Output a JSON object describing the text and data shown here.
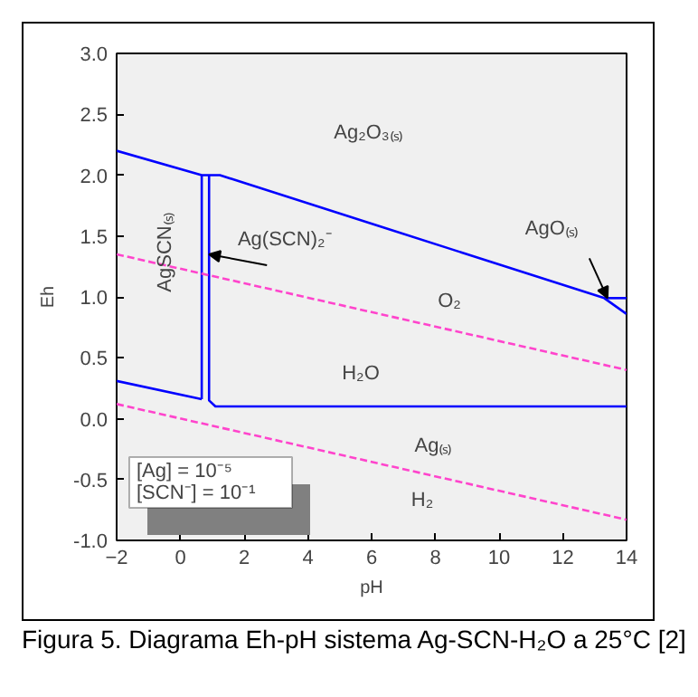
{
  "chart_data": {
    "type": "line",
    "title": "Figura 5. Diagrama Eh-pH sistema Ag-SCN-H₂O a 25°C [2]",
    "xlabel": "pH",
    "ylabel": "Eh",
    "xlim": [
      -2,
      14
    ],
    "xticks": [
      -2,
      0,
      2,
      4,
      6,
      8,
      10,
      12,
      14
    ],
    "ylim": [
      -1,
      3
    ],
    "yticks": [
      {
        "value": -1,
        "label": "-1.0"
      },
      {
        "value": -0.5,
        "label": "-0.5"
      },
      {
        "value": 0,
        "label": "0.0"
      },
      {
        "value": 0.5,
        "label": "0.5"
      },
      {
        "value": 1,
        "label": "1.0"
      },
      {
        "value": 1.5,
        "label": "1.5"
      },
      {
        "value": 2,
        "label": "2.0"
      },
      {
        "value": 2.5,
        "label": "2.5"
      },
      {
        "value": 3,
        "label": "3.0"
      }
    ],
    "grid": false,
    "marker": "none",
    "series": [
      {
        "color": "#0000ff",
        "line_style": "solid",
        "x": [
          -2,
          0.67,
          0.9,
          1.24,
          13.3,
          14
        ],
        "values": [
          2.2,
          2.0,
          2.0,
          2.0,
          0.99,
          0.86
        ]
      },
      {
        "color": "#0000ff",
        "line_style": "solid",
        "x": [
          13.3,
          14
        ],
        "values": [
          0.99,
          0.99
        ]
      },
      {
        "color": "#0000ff",
        "line_style": "solid",
        "x": [
          0.67,
          0.67
        ],
        "values": [
          2.0,
          0.16
        ]
      },
      {
        "color": "#0000ff",
        "line_style": "solid",
        "x": [
          0.9,
          0.9,
          1.1,
          14
        ],
        "values": [
          2.0,
          0.15,
          0.1,
          0.1
        ]
      },
      {
        "color": "#0000ff",
        "line_style": "solid",
        "x": [
          -2,
          0.67
        ],
        "values": [
          0.31,
          0.16
        ]
      },
      {
        "color": "#ff44cc",
        "line_style": "dashed",
        "x": [
          -2,
          14
        ],
        "values": [
          1.35,
          0.4
        ]
      },
      {
        "color": "#ff44cc",
        "line_style": "dashed",
        "x": [
          -2,
          14
        ],
        "values": [
          0.12,
          -0.83
        ]
      }
    ],
    "annotations": [
      "Ag₂O₃₍ₛ₎",
      "AgSCN₍ₛ₎",
      {
        "text": "Ag(SCN)₂⁻",
        "x": 0.9,
        "y": 1.35
      },
      {
        "text": "AgO₍ₛ₎",
        "x": 13.4,
        "y": 0.99
      },
      "O₂",
      "H₂O",
      "Ag₍ₛ₎",
      "H₂",
      "[Ag]    = 10⁻⁵",
      "[SCN⁻]  = 10⁻¹"
    ]
  }
}
